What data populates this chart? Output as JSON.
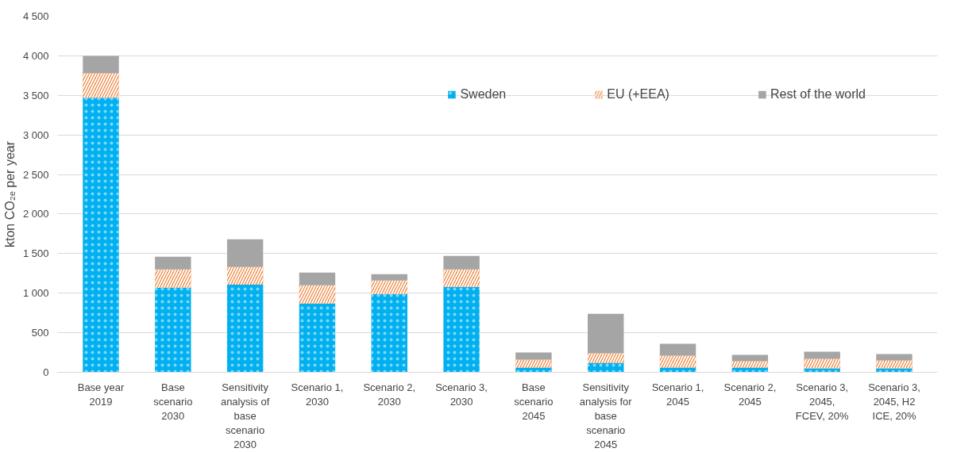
{
  "chart_data": {
    "type": "bar",
    "stacked": true,
    "ylabel": "kton CO₂ₑ per year",
    "categories": [
      "Base year\n2019",
      "Base\nscenario\n2030",
      "Sensitivity\nanalysis of\nbase\nscenario\n2030",
      "Scenario 1,\n2030",
      "Scenario 2,\n2030",
      "Scenario 3,\n2030",
      "Base\nscenario\n2045",
      "Sensitivity\nanalysis for\nbase\nscenario\n2045",
      "Scenario 1,\n2045",
      "Scenario 2,\n2045",
      "Scenario 3,\n2045,\nFCEV, 20%",
      "Scenario 3,\n2045, H2\nICE, 20%"
    ],
    "series": [
      {
        "name": "Sweden",
        "color": "#00b0f0",
        "values": [
          3470,
          1070,
          1110,
          870,
          990,
          1080,
          60,
          120,
          60,
          60,
          50,
          50
        ]
      },
      {
        "name": "EU (+EEA)",
        "color": "#ed7d31",
        "values": [
          310,
          230,
          220,
          230,
          170,
          220,
          100,
          120,
          150,
          80,
          120,
          100
        ]
      },
      {
        "name": "Rest of the world",
        "color": "#a5a5a5",
        "values": [
          220,
          160,
          350,
          160,
          80,
          170,
          90,
          500,
          150,
          80,
          90,
          80
        ]
      }
    ],
    "ylim": [
      0,
      4500
    ],
    "yticks": [
      0,
      500,
      {
        "value": 1000,
        "label": "1 000"
      },
      {
        "value": 1500,
        "label": "1 500"
      },
      {
        "value": 2000,
        "label": "2 000"
      },
      {
        "value": 2500,
        "label": "2 500"
      },
      {
        "value": 3000,
        "label": "3 000"
      },
      {
        "value": 3500,
        "label": "3 500"
      },
      {
        "value": 4000,
        "label": "4 000"
      },
      {
        "value": 4500,
        "label": "4 500"
      }
    ],
    "grid": "y",
    "legend": "top right"
  }
}
